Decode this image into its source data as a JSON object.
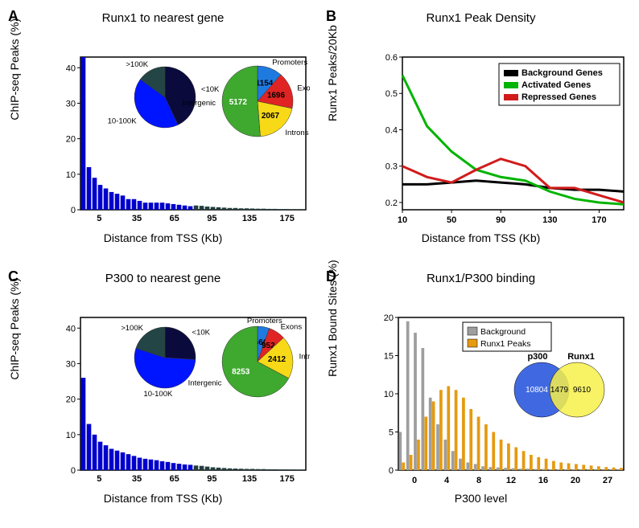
{
  "panels": {
    "A": {
      "letter": "A",
      "title": "Runx1 to nearest gene",
      "ylabel": "ChIP-seq Peaks (%)",
      "xlabel": "Distance from TSS (Kb)",
      "bar_chart": {
        "type": "bar",
        "xticks": [
          "5",
          "35",
          "65",
          "95",
          "135",
          "175"
        ],
        "yticks": [
          0,
          10,
          20,
          30,
          40
        ],
        "ylim": [
          0,
          43
        ],
        "bar_width": 0.8,
        "values_blue": [
          43,
          12,
          9,
          7,
          6,
          5,
          4.5,
          4,
          3,
          3,
          2.5,
          2,
          2,
          2,
          2,
          1.8,
          1.6,
          1.4,
          1.2,
          1
        ],
        "values_dark": [
          0,
          0,
          0,
          0,
          0,
          0,
          0,
          0,
          0,
          0,
          0,
          0,
          0,
          0,
          0,
          0,
          0,
          0,
          0,
          0,
          1.2,
          1.1,
          0.9,
          0.8,
          0.7,
          0.6,
          0.5,
          0.5,
          0.4,
          0.4,
          0.35,
          0.3,
          0.3,
          0.25,
          0.25,
          0.2,
          0.2,
          0.15,
          0.15,
          0.15
        ],
        "color_blue": "#0000cc",
        "color_dark": "#223d3d"
      },
      "pie_distance": {
        "labels": [
          "<10K",
          "10-100K",
          ">100K"
        ],
        "values": [
          43,
          42,
          15
        ],
        "colors": [
          "#0a0a3d",
          "#0015ff",
          "#244545"
        ],
        "label_fontsize": 11
      },
      "pie_regions": {
        "labels": [
          "Promoters",
          "Exons",
          "Introns",
          "Intergenic"
        ],
        "values": [
          1154,
          1696,
          2067,
          5172
        ],
        "colors": [
          "#1f7ae0",
          "#e02424",
          "#f7d917",
          "#3fa82f"
        ],
        "text_color": "#000000",
        "label_fontsize": 11
      }
    },
    "B": {
      "letter": "B",
      "title": "Runx1 Peak Density",
      "ylabel": "Runx1 Peaks/20Kb",
      "xlabel": "Distance from TSS (Kb)",
      "line_chart": {
        "type": "line",
        "xticks": [
          10,
          50,
          90,
          130,
          170
        ],
        "yticks": [
          0.2,
          0.3,
          0.4,
          0.5,
          0.6
        ],
        "ylim": [
          0.18,
          0.6
        ],
        "xlim": [
          10,
          190
        ],
        "line_width": 3,
        "series": [
          {
            "name": "Background Genes",
            "color": "#000000",
            "x": [
              10,
              30,
              50,
              70,
              90,
              110,
              130,
              150,
              170,
              190
            ],
            "y": [
              0.25,
              0.25,
              0.255,
              0.26,
              0.255,
              0.25,
              0.24,
              0.235,
              0.235,
              0.23
            ]
          },
          {
            "name": "Activated Genes",
            "color": "#00b400",
            "x": [
              10,
              30,
              50,
              70,
              90,
              110,
              130,
              150,
              170,
              190
            ],
            "y": [
              0.55,
              0.41,
              0.34,
              0.29,
              0.27,
              0.26,
              0.23,
              0.21,
              0.2,
              0.195
            ]
          },
          {
            "name": "Repressed Genes",
            "color": "#d11b1b",
            "x": [
              10,
              30,
              50,
              70,
              90,
              110,
              130,
              150,
              170,
              190
            ],
            "y": [
              0.3,
              0.27,
              0.255,
              0.29,
              0.32,
              0.3,
              0.24,
              0.24,
              0.22,
              0.2
            ]
          }
        ],
        "legend": {
          "position": "top-right",
          "fontsize": 12,
          "border": "#000000",
          "background": "#ffffff"
        }
      }
    },
    "C": {
      "letter": "C",
      "title": "P300 to nearest gene",
      "ylabel": "ChIP-seq Peaks (%)",
      "xlabel": "Distance from TSS (Kb)",
      "bar_chart": {
        "type": "bar",
        "xticks": [
          "5",
          "35",
          "65",
          "95",
          "135",
          "175"
        ],
        "yticks": [
          0,
          10,
          20,
          30,
          40
        ],
        "ylim": [
          0,
          43
        ],
        "bar_width": 0.8,
        "values_blue": [
          26,
          13,
          10,
          8,
          7,
          6,
          5.5,
          5,
          4.5,
          4,
          3.5,
          3.2,
          3,
          2.8,
          2.5,
          2.3,
          2,
          1.8,
          1.6,
          1.5
        ],
        "values_dark": [
          0,
          0,
          0,
          0,
          0,
          0,
          0,
          0,
          0,
          0,
          0,
          0,
          0,
          0,
          0,
          0,
          0,
          0,
          0,
          0,
          1.3,
          1.2,
          1.0,
          0.8,
          0.7,
          0.6,
          0.5,
          0.45,
          0.4,
          0.35,
          0.35,
          0.3,
          0.3,
          0.25,
          0.25,
          0.2,
          0.2,
          0.18,
          0.15,
          0.15
        ],
        "color_blue": "#0000cc",
        "color_dark": "#223d3d"
      },
      "pie_distance": {
        "labels": [
          "<10K",
          "10-100K",
          ">100K"
        ],
        "values": [
          26,
          54,
          20
        ],
        "colors": [
          "#0a0a3d",
          "#0015ff",
          "#244545"
        ],
        "label_fontsize": 11
      },
      "pie_regions": {
        "labels": [
          "Promoters",
          "Exons",
          "Introns",
          "Intergenic"
        ],
        "values": [
          666,
          952,
          2412,
          8253
        ],
        "colors": [
          "#1f7ae0",
          "#e02424",
          "#f7d917",
          "#3fa82f"
        ],
        "label_fontsize": 11
      }
    },
    "D": {
      "letter": "D",
      "title": "Runx1/P300 binding",
      "ylabel": "Runx1 Bound Sites (%)",
      "xlabel": "P300 level",
      "bar_chart": {
        "type": "grouped-bar",
        "xticks": [
          "0",
          "4",
          "8",
          "12",
          "16",
          "20",
          "27"
        ],
        "yticks": [
          0,
          5,
          10,
          15,
          20
        ],
        "ylim": [
          0,
          20
        ],
        "bar_width": 0.4,
        "series": [
          {
            "name": "Background",
            "color": "#9e9e9e",
            "values": [
              5,
              19.5,
              18,
              16,
              9.5,
              6,
              4,
              2.5,
              1.5,
              1,
              0.8,
              0.5,
              0.4,
              0.35,
              0.3,
              0.25,
              0.2,
              0.2,
              0.15,
              0.15,
              0.1,
              0.1,
              0.1,
              0.08,
              0.08,
              0.05,
              0.05,
              0.05,
              0.05,
              0.05
            ]
          },
          {
            "name": "Runx1 Peaks",
            "color": "#e59a10",
            "values": [
              1,
              2,
              4,
              7,
              9,
              10.5,
              11,
              10.5,
              9.5,
              8,
              7,
              6,
              5,
              4,
              3.5,
              3,
              2.5,
              2,
              1.7,
              1.5,
              1.2,
              1,
              0.9,
              0.8,
              0.7,
              0.6,
              0.5,
              0.4,
              0.35,
              0.3
            ]
          }
        ],
        "legend": {
          "position": "top",
          "fontsize": 12,
          "border": "#000000",
          "background": "#ffffff"
        }
      },
      "venn": {
        "left": {
          "label": "p300",
          "count": 10804,
          "fill": "#1f4fdc",
          "text": "#ffffff"
        },
        "right": {
          "label": "Runx1",
          "count": 9610,
          "fill": "#f7f04a",
          "text": "#000000"
        },
        "overlap": 1479,
        "label_fontsize": 12
      }
    }
  },
  "global": {
    "background_color": "#ffffff",
    "axis_color": "#000000",
    "tick_fontsize": 12,
    "title_fontsize": 15,
    "label_fontsize": 14,
    "panel_letter_fontsize": 18
  }
}
